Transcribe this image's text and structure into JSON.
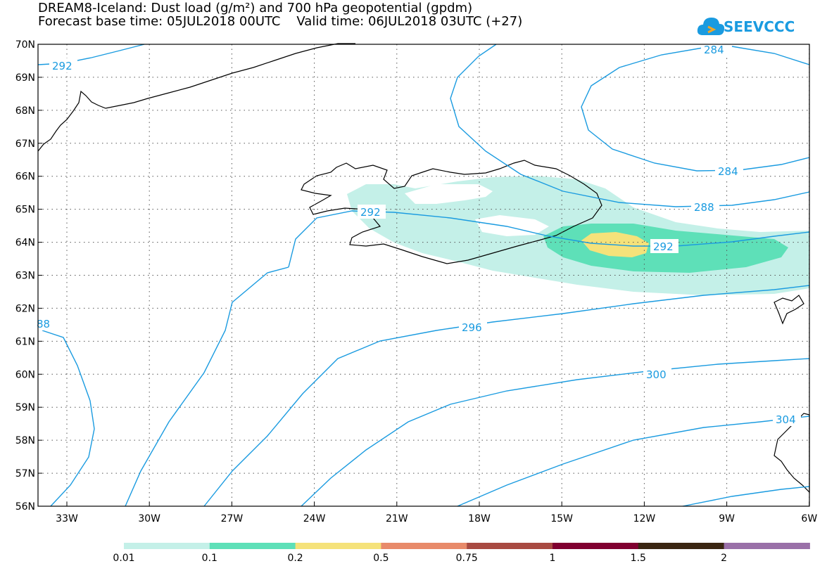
{
  "header": {
    "line1": "DREAM8-Iceland: Dust load (g/m²) and 700 hPa geopotential (gpdm)",
    "line2": "Forecast base time: 05JUL2018 00UTC    Valid time: 06JUL2018 03UTC (+27)"
  },
  "logo": {
    "text": "SEEVCCC",
    "icon": "cloud-icon"
  },
  "axes": {
    "lat_labels": [
      "70N",
      "69N",
      "68N",
      "67N",
      "66N",
      "65N",
      "64N",
      "63N",
      "62N",
      "61N",
      "60N",
      "59N",
      "58N",
      "57N",
      "56N"
    ],
    "lon_labels": [
      "33W",
      "30W",
      "27W",
      "24W",
      "21W",
      "18W",
      "15W",
      "12W",
      "9W",
      "6W"
    ]
  },
  "contours": {
    "color": "#1a9be0",
    "labels": [
      "292",
      "284",
      "284",
      "288",
      "292",
      "292",
      "296",
      "300",
      "304",
      "88"
    ]
  },
  "colorbar": {
    "colors": [
      "#c4f0e8",
      "#5ee0b8",
      "#f5e27a",
      "#e88a6a",
      "#a84a42",
      "#800030",
      "#3a2612",
      "#9a70a8"
    ],
    "labels": [
      "0.01",
      "0.1",
      "0.2",
      "0.5",
      "0.75",
      "1",
      "1.5",
      "2"
    ]
  }
}
